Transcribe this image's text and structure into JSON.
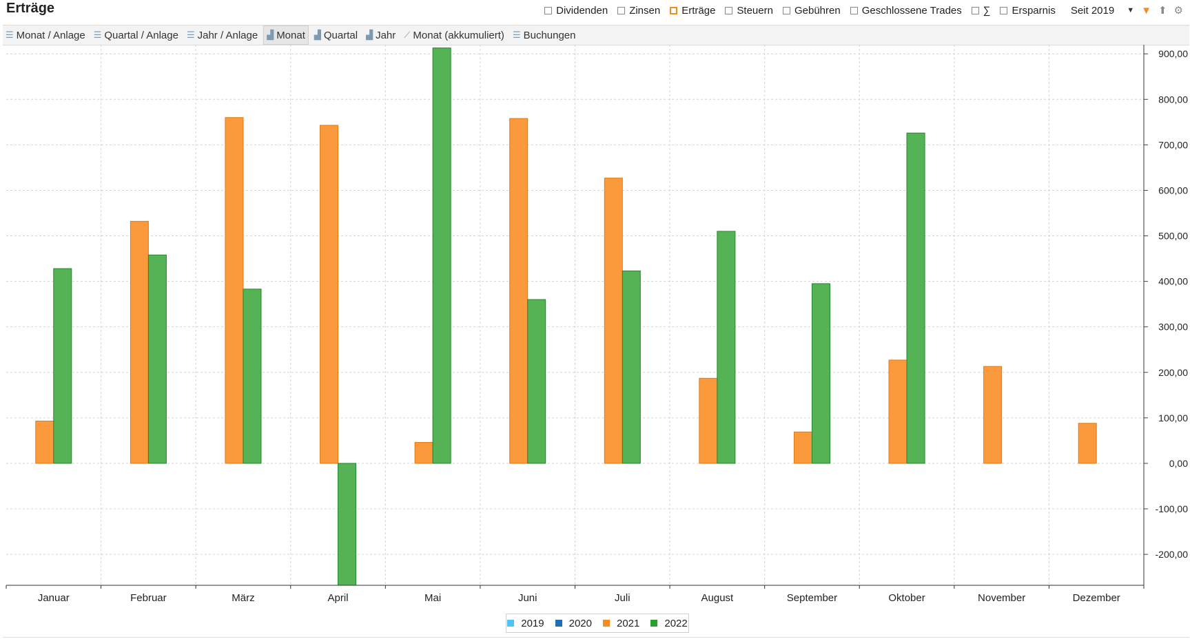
{
  "header": {
    "title": "Erträge",
    "filters": [
      {
        "label": "Dividenden",
        "checked": false
      },
      {
        "label": "Zinsen",
        "checked": false
      },
      {
        "label": "Erträge",
        "checked": true
      },
      {
        "label": "Steuern",
        "checked": false
      },
      {
        "label": "Gebühren",
        "checked": false
      },
      {
        "label": "Geschlossene Trades",
        "checked": false
      },
      {
        "label": "∑",
        "checked": false
      },
      {
        "label": "Ersparnis",
        "checked": false
      }
    ],
    "period": "Seit 2019",
    "icons": [
      "chevron-down-icon",
      "filter-icon",
      "export-icon",
      "settings-icon"
    ]
  },
  "tabs": [
    {
      "label": "Monat / Anlage",
      "icon": "list-icon",
      "active": false
    },
    {
      "label": "Quartal / Anlage",
      "icon": "list-icon",
      "active": false
    },
    {
      "label": "Jahr / Anlage",
      "icon": "list-icon",
      "active": false
    },
    {
      "label": "Monat",
      "icon": "bar-chart-icon",
      "active": true
    },
    {
      "label": "Quartal",
      "icon": "bar-chart-icon",
      "active": false
    },
    {
      "label": "Jahr",
      "icon": "bar-chart-icon",
      "active": false
    },
    {
      "label": "Monat (akkumuliert)",
      "icon": "line-chart-icon",
      "active": false
    },
    {
      "label": "Buchungen",
      "icon": "list-icon",
      "active": false
    }
  ],
  "chart_data": {
    "type": "bar",
    "categories": [
      "Januar",
      "Februar",
      "März",
      "April",
      "Mai",
      "Juni",
      "Juli",
      "August",
      "September",
      "Oktober",
      "November",
      "Dezember"
    ],
    "series": [
      {
        "name": "2019",
        "color": "#4fc3f7",
        "values": [
          0,
          0,
          0,
          0,
          0,
          0,
          0,
          0,
          0,
          0,
          0,
          0
        ]
      },
      {
        "name": "2020",
        "color": "#1f6fb4",
        "values": [
          0,
          0,
          0,
          0,
          0,
          0,
          0,
          0,
          0,
          0,
          0,
          0
        ]
      },
      {
        "name": "2021",
        "color": "#f68b1f",
        "values": [
          93,
          532,
          760,
          743,
          46,
          758,
          627,
          187,
          69,
          227,
          213,
          88
        ]
      },
      {
        "name": "2022",
        "color": "#2ca02c",
        "values": [
          428,
          458,
          383,
          -268,
          913,
          360,
          423,
          510,
          395,
          726,
          0,
          0
        ]
      }
    ],
    "y_ticks": [
      "900,00",
      "800,00",
      "700,00",
      "600,00",
      "500,00",
      "400,00",
      "300,00",
      "200,00",
      "100,00",
      "0,00",
      "-100,00",
      "-200,00"
    ],
    "ylim": [
      -268,
      920
    ],
    "y_axis_side": "right",
    "grid": true,
    "legend_placement": "bottom-center"
  }
}
